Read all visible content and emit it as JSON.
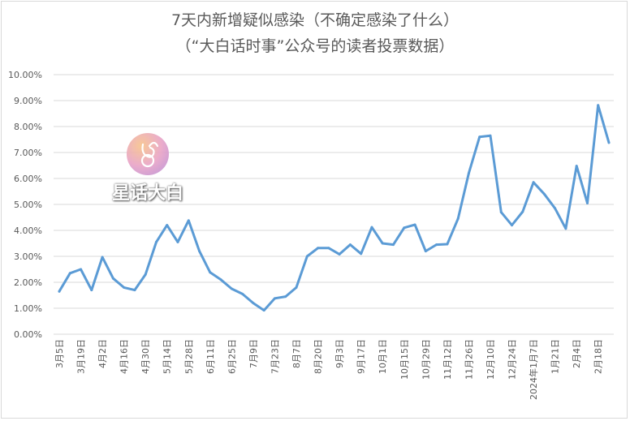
{
  "chart_data": {
    "type": "line",
    "title": "7天内新增疑似感染（不确定感染了什么）",
    "subtitle": "（“大白话时事”公众号的读者投票数据）",
    "xlabel": "",
    "ylabel": "",
    "ylim": [
      0,
      10
    ],
    "y_ticks": [
      "0.00%",
      "1.00%",
      "2.00%",
      "3.00%",
      "4.00%",
      "5.00%",
      "6.00%",
      "7.00%",
      "8.00%",
      "9.00%",
      "10.00%"
    ],
    "x_tick_labels": [
      "3月5日",
      "3月19日",
      "4月2日",
      "4月16日",
      "4月30日",
      "5月14日",
      "5月28日",
      "6月11日",
      "6月25日",
      "7月9日",
      "7月23日",
      "8月7日",
      "8月20日",
      "9月3日",
      "9月17日",
      "10月1日",
      "10月15日",
      "10月29日",
      "11月12日",
      "11月26日",
      "12月10日",
      "12月24日",
      "2024年1月7日",
      "1月21日",
      "2月4日",
      "2月18日"
    ],
    "grid": true,
    "legend": "none",
    "line_color": "#5b9bd5",
    "series": [
      {
        "values": [
          1.65,
          2.35,
          2.5,
          1.7,
          2.97,
          2.15,
          1.8,
          1.7,
          2.3,
          3.55,
          4.2,
          3.55,
          4.38,
          3.2,
          2.38,
          2.1,
          1.75,
          1.55,
          1.2,
          0.92,
          1.38,
          1.45,
          1.8,
          3.0,
          3.32,
          3.32,
          3.08,
          3.45,
          3.1,
          4.12,
          3.5,
          3.45,
          4.1,
          4.22,
          3.2,
          3.45,
          3.47,
          4.45,
          6.2,
          7.6,
          7.65,
          4.7,
          4.2,
          4.72,
          5.85,
          5.4,
          4.85,
          4.07,
          6.48,
          5.05,
          8.82,
          7.38
        ]
      }
    ],
    "watermark": "星话大白"
  }
}
